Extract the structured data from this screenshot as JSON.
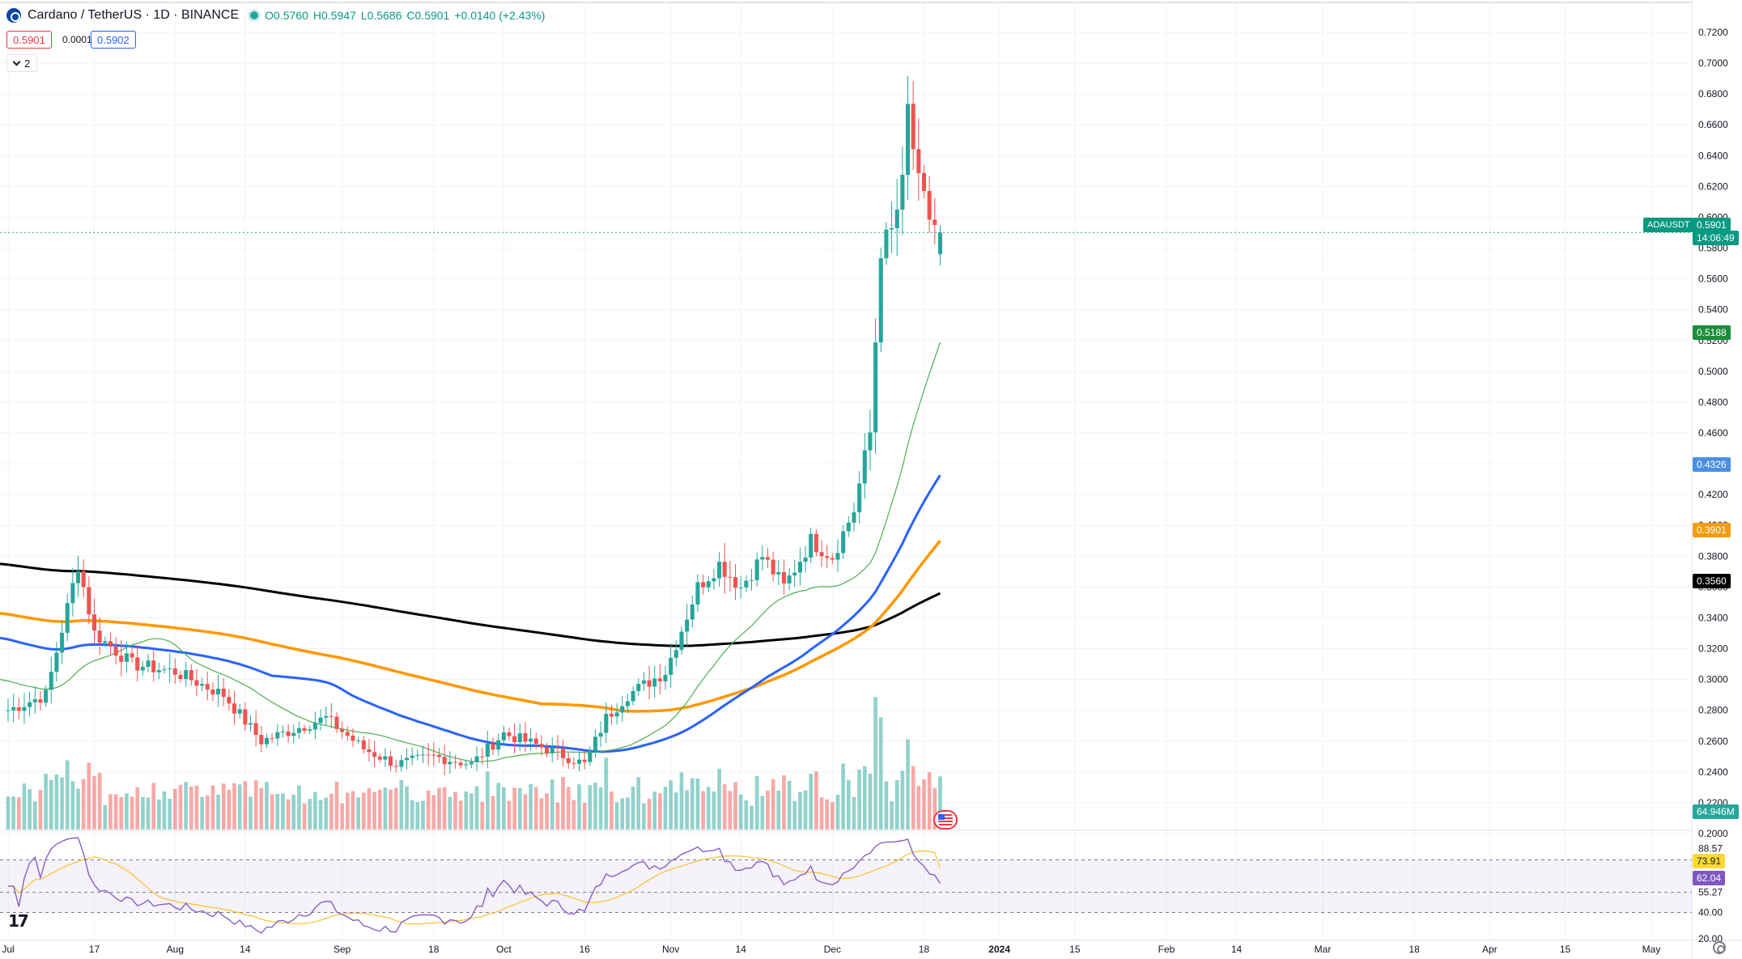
{
  "header": {
    "symbol_title": "Cardano / TetherUS · 1D · BINANCE",
    "open": "O0.5760",
    "high": "H0.5947",
    "low": "L0.5686",
    "close": "C0.5901",
    "change": "+0.0140 (+2.43%)",
    "sell_price": "0.5901",
    "spread": "0.0001",
    "buy_price": "0.5902",
    "collapse_count": "2"
  },
  "price_axis": {
    "labels": [
      "0.7200",
      "0.7000",
      "0.6800",
      "0.6600",
      "0.6400",
      "0.6200",
      "0.6000",
      "0.5800",
      "0.5600",
      "0.5400",
      "0.5200",
      "0.5000",
      "0.4800",
      "0.4600",
      "0.4400",
      "0.4200",
      "0.4000",
      "0.3800",
      "0.3600",
      "0.3400",
      "0.3200",
      "0.3000",
      "0.2800",
      "0.2600",
      "0.2400",
      "0.2200",
      "0.2000"
    ],
    "current_ticker": "ADAUSDT",
    "current_price": "0.5901",
    "countdown": "14:06:49",
    "ma20_value": "0.5188",
    "ma50_value": "0.4326",
    "ma100_value": "0.3901",
    "ma200_value": "0.3560",
    "volume_value": "64.946M"
  },
  "rsi_axis": {
    "labels": [
      "88.57",
      "80.00",
      "55.27",
      "40.00",
      "20.00"
    ],
    "ma_value": "73.91",
    "rsi_value": "62.04"
  },
  "time_axis": {
    "labels": [
      "Jul",
      "17",
      "Aug",
      "14",
      "Sep",
      "18",
      "Oct",
      "16",
      "Nov",
      "14",
      "Dec",
      "18",
      "2024",
      "15",
      "Feb",
      "14",
      "Mar",
      "18",
      "Apr",
      "15",
      "May"
    ]
  },
  "colors": {
    "up": "#26a69a",
    "down": "#ef5350",
    "ma20": "#4caf50",
    "ma50": "#2962ff",
    "ma100": "#ff9800",
    "ma200": "#000000",
    "rsi": "#7e57c2",
    "rsi_ma": "#fbc02d"
  },
  "icons": [
    "cardano-logo-icon",
    "live-dot-icon",
    "chevron-down-icon",
    "tradingview-logo-icon",
    "us-flag-icon",
    "gear-icon"
  ],
  "chart_data": {
    "type": "candlestick",
    "title": "Cardano / TetherUS · 1D · BINANCE",
    "x_range": [
      "2023-07-01",
      "2024-05-01"
    ],
    "ylim": [
      0.2,
      0.72
    ],
    "last": {
      "open": 0.576,
      "high": 0.5947,
      "low": 0.5686,
      "close": 0.5901
    },
    "close_path": [
      {
        "x": "2023-07-01",
        "y": 0.28
      },
      {
        "x": "2023-07-08",
        "y": 0.29
      },
      {
        "x": "2023-07-14",
        "y": 0.375
      },
      {
        "x": "2023-07-17",
        "y": 0.33
      },
      {
        "x": "2023-07-24",
        "y": 0.31
      },
      {
        "x": "2023-08-01",
        "y": 0.305
      },
      {
        "x": "2023-08-10",
        "y": 0.29
      },
      {
        "x": "2023-08-17",
        "y": 0.26
      },
      {
        "x": "2023-08-29",
        "y": 0.275
      },
      {
        "x": "2023-09-05",
        "y": 0.255
      },
      {
        "x": "2023-09-11",
        "y": 0.245
      },
      {
        "x": "2023-09-18",
        "y": 0.25
      },
      {
        "x": "2023-09-25",
        "y": 0.245
      },
      {
        "x": "2023-10-01",
        "y": 0.265
      },
      {
        "x": "2023-10-09",
        "y": 0.255
      },
      {
        "x": "2023-10-16",
        "y": 0.245
      },
      {
        "x": "2023-10-20",
        "y": 0.275
      },
      {
        "x": "2023-10-24",
        "y": 0.29
      },
      {
        "x": "2023-10-31",
        "y": 0.305
      },
      {
        "x": "2023-11-06",
        "y": 0.36
      },
      {
        "x": "2023-11-10",
        "y": 0.375
      },
      {
        "x": "2023-11-14",
        "y": 0.36
      },
      {
        "x": "2023-11-18",
        "y": 0.38
      },
      {
        "x": "2023-11-22",
        "y": 0.36
      },
      {
        "x": "2023-11-27",
        "y": 0.39
      },
      {
        "x": "2023-12-01",
        "y": 0.38
      },
      {
        "x": "2023-12-05",
        "y": 0.41
      },
      {
        "x": "2023-12-08",
        "y": 0.46
      },
      {
        "x": "2023-12-10",
        "y": 0.58
      },
      {
        "x": "2023-12-12",
        "y": 0.59
      },
      {
        "x": "2023-12-14",
        "y": 0.62
      },
      {
        "x": "2023-12-15",
        "y": 0.67
      },
      {
        "x": "2023-12-17",
        "y": 0.62
      },
      {
        "x": "2023-12-19",
        "y": 0.6
      },
      {
        "x": "2023-12-21",
        "y": 0.5901
      }
    ],
    "series": [
      {
        "name": "MA 20",
        "last": 0.5188
      },
      {
        "name": "MA 50",
        "last": 0.4326
      },
      {
        "name": "MA 100",
        "last": 0.3901
      },
      {
        "name": "MA 200",
        "last": 0.356
      }
    ],
    "volume_last": "64.946M",
    "rsi": {
      "last": 62.04,
      "ma_last": 73.91,
      "ylim": [
        20,
        100
      ],
      "bands": [
        80,
        55.27,
        40
      ]
    }
  }
}
